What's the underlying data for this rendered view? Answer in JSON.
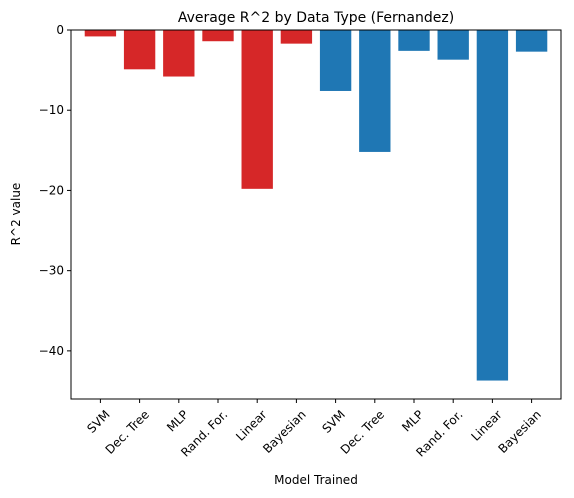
{
  "chart_data": {
    "type": "bar",
    "title": "Average R^2 by Data Type (Fernandez)",
    "xlabel": "Model Trained",
    "ylabel": "R^2 value",
    "ylim": [
      -46,
      0
    ],
    "yticks": [
      0,
      -10,
      -20,
      -30,
      -40
    ],
    "ytick_labels": [
      "0",
      "−10",
      "−20",
      "−30",
      "−40"
    ],
    "grid": false,
    "categories": [
      "SVM",
      "Dec. Tree",
      "MLP",
      "Rand. For.",
      "Linear",
      "Bayesian",
      "SVM",
      "Dec. Tree",
      "MLP",
      "Rand. For.",
      "Linear",
      "Bayesian"
    ],
    "values": [
      -0.8,
      -4.9,
      -5.8,
      -1.4,
      -19.8,
      -1.7,
      -7.6,
      -15.2,
      -2.6,
      -3.7,
      -43.7,
      -2.7
    ],
    "colors": [
      "#d62728",
      "#d62728",
      "#d62728",
      "#d62728",
      "#d62728",
      "#d62728",
      "#1f77b4",
      "#1f77b4",
      "#1f77b4",
      "#1f77b4",
      "#1f77b4",
      "#1f77b4"
    ]
  }
}
